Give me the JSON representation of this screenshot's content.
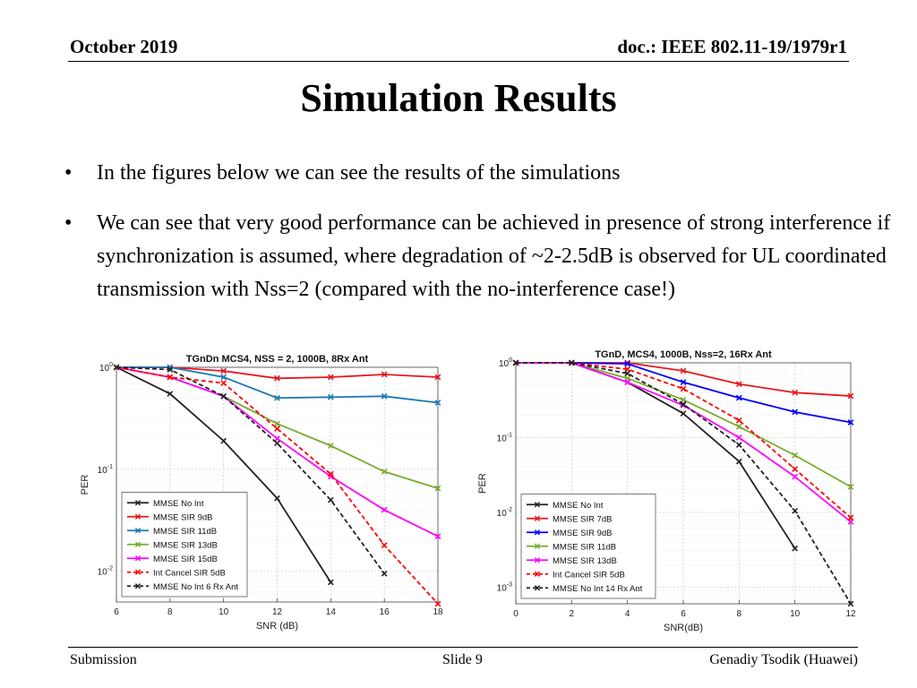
{
  "header": {
    "date": "October 2019",
    "doc": "doc.: IEEE 802.11-19/1979r1"
  },
  "title": "Simulation Results",
  "bullets": [
    {
      "symbol": "•",
      "text": "In the figures below we can see the results of the simulations"
    },
    {
      "symbol": "•",
      "text": "We can see that very good performance can be achieved in presence of strong interference if synchronization is assumed, where degradation of ~2-2.5dB is observed for UL coordinated transmission with Nss=2 (compared with the no-interference case!)"
    }
  ],
  "footer": {
    "left": "Submission",
    "center": "Slide 9",
    "right": "Genadiy Tsodik (Huawei)"
  },
  "chart_data": [
    {
      "type": "line",
      "title": "TGnDn MCS4, NSS = 2, 1000B, 8Rx Ant",
      "xlabel": "SNR (dB)",
      "ylabel": "PER",
      "yscale": "log",
      "xlim": [
        6,
        18
      ],
      "ylim": [
        0.005,
        1
      ],
      "xticks": [
        6,
        8,
        10,
        12,
        14,
        16,
        18
      ],
      "yticks": [
        {
          "value": 1,
          "base": "10",
          "exp": "0"
        },
        {
          "value": 0.1,
          "base": "10",
          "exp": "-1"
        },
        {
          "value": 0.01,
          "base": "10",
          "exp": "-2"
        }
      ],
      "grid": true,
      "legend_position": "bottom-left",
      "series": [
        {
          "name": "MMSE No Int",
          "color": "#222222",
          "dash": "solid",
          "x": [
            6,
            8,
            10,
            12,
            14
          ],
          "y": [
            1,
            0.55,
            0.19,
            0.052,
            0.0078
          ]
        },
        {
          "name": "MMSE SIR 9dB",
          "color": "#e41a1c",
          "dash": "solid",
          "x": [
            6,
            8,
            10,
            12,
            14,
            16,
            18
          ],
          "y": [
            1,
            1,
            0.92,
            0.78,
            0.8,
            0.85,
            0.8
          ]
        },
        {
          "name": "MMSE SIR 11dB",
          "color": "#1f77b4",
          "dash": "solid",
          "x": [
            6,
            8,
            10,
            12,
            14,
            16,
            18
          ],
          "y": [
            1,
            1,
            0.8,
            0.5,
            0.51,
            0.52,
            0.45
          ]
        },
        {
          "name": "MMSE SIR 13dB",
          "color": "#77ac30",
          "dash": "solid",
          "x": [
            6,
            8,
            10,
            12,
            14,
            16,
            18
          ],
          "y": [
            1,
            0.8,
            0.52,
            0.28,
            0.17,
            0.095,
            0.065
          ]
        },
        {
          "name": "MMSE SIR 15dB",
          "color": "#ff00ff",
          "dash": "solid",
          "x": [
            6,
            8,
            10,
            12,
            14,
            16,
            18
          ],
          "y": [
            1,
            0.8,
            0.52,
            0.2,
            0.085,
            0.04,
            0.022
          ]
        },
        {
          "name": "Int Cancel SIR 5dB",
          "color": "#ff0000",
          "dash": "dashed",
          "x": [
            6,
            8,
            10,
            12,
            14,
            16,
            18
          ],
          "y": [
            1,
            0.8,
            0.7,
            0.25,
            0.09,
            0.018,
            0.0048
          ]
        },
        {
          "name": "MMSE No Int 6 Rx Ant",
          "color": "#222222",
          "dash": "dashed",
          "x": [
            6,
            8,
            10,
            12,
            14,
            16
          ],
          "y": [
            1,
            0.95,
            0.52,
            0.18,
            0.05,
            0.0095
          ]
        }
      ]
    },
    {
      "type": "line",
      "title": "TGnD, MCS4, 1000B, Nss=2, 16Rx Ant",
      "xlabel": "SNR(dB)",
      "ylabel": "PER",
      "yscale": "log",
      "xlim": [
        0,
        12
      ],
      "ylim": [
        0.0006,
        1
      ],
      "xticks": [
        0,
        2,
        4,
        6,
        8,
        10,
        12
      ],
      "yticks": [
        {
          "value": 1,
          "base": "10",
          "exp": "0"
        },
        {
          "value": 0.1,
          "base": "10",
          "exp": "-1"
        },
        {
          "value": 0.01,
          "base": "10",
          "exp": "-2"
        },
        {
          "value": 0.001,
          "base": "10",
          "exp": "-3"
        }
      ],
      "grid": true,
      "legend_position": "bottom-left",
      "series": [
        {
          "name": "MMSE No Int",
          "color": "#222222",
          "dash": "solid",
          "x": [
            0,
            2,
            4,
            6,
            8,
            10
          ],
          "y": [
            1,
            1,
            0.55,
            0.21,
            0.048,
            0.0033
          ]
        },
        {
          "name": "MMSE SIR 7dB",
          "color": "#e41a1c",
          "dash": "solid",
          "x": [
            0,
            2,
            4,
            6,
            8,
            10,
            12
          ],
          "y": [
            1,
            1,
            1,
            0.78,
            0.52,
            0.4,
            0.36
          ]
        },
        {
          "name": "MMSE SIR 9dB",
          "color": "#0000ff",
          "dash": "solid",
          "x": [
            0,
            2,
            4,
            6,
            8,
            10,
            12
          ],
          "y": [
            1,
            1,
            0.97,
            0.55,
            0.34,
            0.22,
            0.16
          ]
        },
        {
          "name": "MMSE SIR 11dB",
          "color": "#77ac30",
          "dash": "solid",
          "x": [
            0,
            2,
            4,
            6,
            8,
            10,
            12
          ],
          "y": [
            1,
            1,
            0.62,
            0.32,
            0.14,
            0.058,
            0.022
          ]
        },
        {
          "name": "MMSE SIR 13dB",
          "color": "#ff00ff",
          "dash": "solid",
          "x": [
            0,
            2,
            4,
            6,
            8,
            10,
            12
          ],
          "y": [
            1,
            1,
            0.55,
            0.27,
            0.1,
            0.03,
            0.0075
          ]
        },
        {
          "name": "Int Cancel SIR 5dB",
          "color": "#ff0000",
          "dash": "dashed",
          "x": [
            0,
            2,
            4,
            6,
            8,
            10,
            12
          ],
          "y": [
            1,
            1,
            0.82,
            0.45,
            0.17,
            0.038,
            0.0085
          ]
        },
        {
          "name": "MMSE No Int 14 Rx Ant",
          "color": "#222222",
          "dash": "dashed",
          "x": [
            0,
            2,
            4,
            6,
            8,
            10,
            12
          ],
          "y": [
            1,
            1,
            0.72,
            0.28,
            0.08,
            0.0105,
            0.0006
          ]
        }
      ]
    }
  ]
}
